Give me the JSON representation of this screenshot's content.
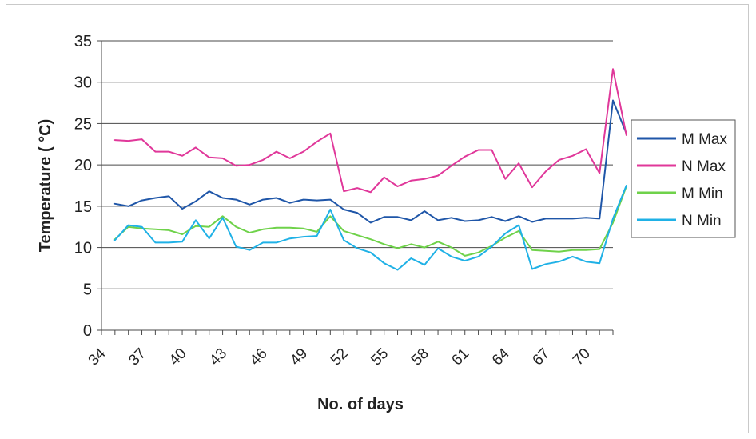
{
  "chart_data": {
    "type": "line",
    "xlabel": "No. of days",
    "ylabel": "Temperature ( °C)",
    "ylim": [
      0,
      35
    ],
    "yticks": [
      0,
      5,
      10,
      15,
      20,
      25,
      30,
      35
    ],
    "xlim": [
      34,
      72
    ],
    "xticks": [
      34,
      37,
      40,
      43,
      46,
      49,
      52,
      55,
      58,
      61,
      64,
      67,
      70
    ],
    "grid": "horizontal",
    "legend_position": "right",
    "x": [
      35,
      36,
      37,
      38,
      39,
      40,
      41,
      42,
      43,
      44,
      45,
      46,
      47,
      48,
      49,
      50,
      51,
      52,
      53,
      54,
      55,
      56,
      57,
      58,
      59,
      60,
      61,
      62,
      63,
      64,
      65,
      66,
      67,
      68,
      69,
      70,
      71,
      72,
      73
    ],
    "series": [
      {
        "name": "M Max",
        "color": "#1f56a8",
        "values": [
          15.3,
          15.0,
          15.7,
          16.0,
          16.2,
          14.7,
          15.6,
          16.8,
          16.0,
          15.8,
          15.2,
          15.8,
          16.0,
          15.4,
          15.8,
          15.7,
          15.8,
          14.6,
          14.2,
          13.0,
          13.7,
          13.7,
          13.3,
          14.4,
          13.3,
          13.6,
          13.2,
          13.3,
          13.7,
          13.2,
          13.8,
          13.1,
          13.5,
          13.5,
          13.5,
          13.6,
          13.5,
          27.8,
          23.8
        ]
      },
      {
        "name": "N Max",
        "color": "#e0389a",
        "values": [
          23.0,
          22.9,
          23.1,
          21.6,
          21.6,
          21.1,
          22.1,
          20.9,
          20.8,
          19.9,
          20.0,
          20.6,
          21.6,
          20.8,
          21.6,
          22.8,
          23.8,
          16.8,
          17.2,
          16.7,
          18.5,
          17.4,
          18.1,
          18.3,
          18.7,
          19.9,
          21.0,
          21.8,
          21.8,
          18.3,
          20.2,
          17.3,
          19.2,
          20.6,
          21.1,
          21.9,
          19.0,
          31.6,
          23.6
        ]
      },
      {
        "name": "M Min",
        "color": "#6fd24a",
        "values": [
          11.0,
          12.5,
          12.3,
          12.2,
          12.1,
          11.6,
          12.6,
          12.5,
          13.8,
          12.5,
          11.8,
          12.2,
          12.4,
          12.4,
          12.3,
          11.9,
          13.8,
          12.0,
          11.5,
          11.0,
          10.4,
          9.9,
          10.4,
          10.0,
          10.7,
          10.0,
          9.0,
          9.4,
          10.2,
          11.2,
          12.0,
          9.7,
          9.6,
          9.5,
          9.7,
          9.7,
          9.8,
          13.0,
          17.4
        ]
      },
      {
        "name": "N Min",
        "color": "#1fb1e6",
        "values": [
          10.9,
          12.7,
          12.5,
          10.6,
          10.6,
          10.7,
          13.3,
          11.1,
          13.6,
          10.1,
          9.7,
          10.6,
          10.6,
          11.1,
          11.3,
          11.4,
          14.6,
          10.9,
          9.9,
          9.4,
          8.1,
          7.3,
          8.7,
          7.9,
          9.9,
          8.9,
          8.4,
          8.9,
          10.1,
          11.7,
          12.7,
          7.4,
          8.0,
          8.3,
          8.9,
          8.3,
          8.1,
          13.5,
          17.5
        ]
      }
    ]
  }
}
